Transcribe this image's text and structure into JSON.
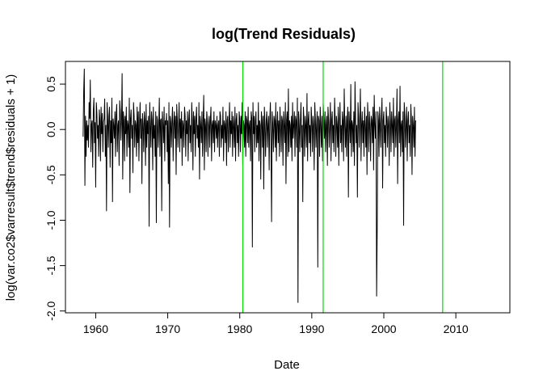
{
  "chart_data": {
    "type": "line",
    "title": "log(Trend Residuals)",
    "xlabel": "Date",
    "ylabel": "log(var.co2$varresult$trend$residuals + 1)",
    "xlim": [
      1955.8,
      2017.5
    ],
    "ylim": [
      -2.02,
      0.75
    ],
    "x_ticks": [
      1960,
      1970,
      1980,
      1990,
      2000,
      2010
    ],
    "x_tick_labels": [
      "1960",
      "1970",
      "1980",
      "1990",
      "2000",
      "2010"
    ],
    "y_ticks": [
      0.5,
      0.0,
      -0.5,
      -1.0,
      -1.5,
      -2.0
    ],
    "y_tick_labels": [
      "0.5",
      "0.0",
      "-0.5",
      "-1.0",
      "-1.5",
      "-2.0"
    ],
    "grid": false,
    "legend": "none",
    "series": [
      {
        "color": "#000000",
        "x_start": 1958.25,
        "x_step": 0.0833333,
        "values": [
          -0.08,
          0.42,
          0.67,
          -0.62,
          0.15,
          -0.3,
          0.1,
          -0.12,
          0.05,
          -0.2,
          0.3,
          0.12,
          0.55,
          -0.25,
          0.05,
          0.1,
          -0.42,
          0.2,
          0.35,
          -0.15,
          0.08,
          -0.64,
          0.3,
          0.18,
          -0.1,
          0.05,
          -0.3,
          0.22,
          0.1,
          -0.35,
          0.25,
          -0.05,
          0.18,
          -0.25,
          0.08,
          0.12,
          0.34,
          -0.3,
          0.05,
          -0.9,
          0.3,
          0.1,
          -0.2,
          0.15,
          0.25,
          -0.42,
          0.1,
          -0.15,
          0.35,
          -0.8,
          0.12,
          0.05,
          -0.1,
          0.2,
          -0.3,
          0.15,
          0.28,
          -0.25,
          0.05,
          0.1,
          -0.4,
          0.32,
          0.2,
          -0.12,
          0.1,
          0.62,
          -0.55,
          0.2,
          0.1,
          -0.35,
          0.15,
          -0.05,
          0.25,
          -0.3,
          0.1,
          0.05,
          -0.2,
          0.35,
          -0.7,
          0.12,
          0.22,
          -0.1,
          0.05,
          -0.48,
          0.3,
          0.15,
          -0.2,
          0.1,
          0.05,
          -0.3,
          0.25,
          -0.15,
          0.2,
          -0.35,
          0.08,
          0.3,
          -0.1,
          0.12,
          -0.6,
          0.18,
          0.05,
          -0.25,
          0.2,
          0.1,
          -0.4,
          0.28,
          -0.2,
          0.1,
          -0.05,
          0.15,
          -1.07,
          0.3,
          0.05,
          -0.2,
          0.2,
          0.1,
          -0.45,
          0.25,
          -0.1,
          0.05,
          -0.3,
          0.2,
          -1.03,
          0.15,
          0.1,
          -0.2,
          0.05,
          0.35,
          -0.3,
          0.1,
          0.12,
          -0.9,
          0.2,
          0.05,
          -0.15,
          0.25,
          -0.35,
          0.1,
          0.05,
          0.18,
          -0.25,
          0.1,
          -0.6,
          0.3,
          -1.08,
          0.15,
          0.08,
          -0.2,
          0.1,
          0.25,
          -0.35,
          0.05,
          0.2,
          -0.1,
          0.15,
          -0.5,
          0.28,
          0.1,
          -0.2,
          0.05,
          0.3,
          -0.25,
          0.12,
          -0.1,
          0.2,
          -0.4,
          0.1,
          0.05,
          -0.2,
          0.25,
          0.15,
          -0.3,
          0.1,
          -0.05,
          0.2,
          -0.35,
          0.1,
          0.22,
          -0.15,
          0.05,
          -0.25,
          0.3,
          0.1,
          -0.45,
          0.2,
          -0.05,
          0.15,
          -0.3,
          0.1,
          0.25,
          -0.1,
          0.05,
          -0.2,
          0.3,
          -0.55,
          0.15,
          0.05,
          -0.15,
          0.2,
          -0.3,
          0.1,
          0.38,
          -0.45,
          0.12,
          0.05,
          -0.25,
          0.2,
          0.1,
          -0.3,
          0.05,
          0.15,
          -0.2,
          0.1,
          0.25,
          -0.35,
          0.05,
          0.1,
          -0.15,
          0.2,
          -0.25,
          0.1,
          0.05,
          -0.1,
          0.15,
          -0.2,
          0.05,
          0.1,
          -0.3,
          0.2,
          0.15,
          -0.2,
          0.05,
          -0.1,
          0.25,
          -0.35,
          0.1,
          0.05,
          -0.15,
          0.2,
          -0.4,
          0.1,
          0.15,
          -0.25,
          0.05,
          0.3,
          -0.2,
          0.1,
          -0.05,
          0.2,
          -0.3,
          0.15,
          0.05,
          -0.2,
          0.25,
          -0.35,
          0.1,
          0.18,
          -0.15,
          0.05,
          -0.3,
          0.2,
          0.1,
          -0.25,
          0.15,
          -0.05,
          0.3,
          -0.4,
          0.1,
          0.05,
          -0.2,
          0.2,
          -0.3,
          0.15,
          0.1,
          -0.15,
          0.25,
          -0.2,
          0.05,
          0.1,
          -0.35,
          0.2,
          0.12,
          -1.3,
          0.3,
          -0.05,
          0.15,
          -0.25,
          0.1,
          0.2,
          -0.2,
          0.05,
          -0.15,
          0.3,
          -0.35,
          0.1,
          0.05,
          -0.55,
          0.2,
          0.1,
          -0.2,
          0.15,
          -0.66,
          0.25,
          0.05,
          -0.3,
          0.1,
          0.2,
          -0.2,
          0.05,
          0.15,
          -0.45,
          0.1,
          0.3,
          -0.1,
          -1.02,
          0.2,
          0.05,
          -0.25,
          0.15,
          0.1,
          -0.2,
          0.3,
          -0.35,
          0.05,
          0.2,
          -0.15,
          0.1,
          -0.3,
          0.25,
          0.05,
          -0.25,
          0.15,
          0.1,
          -0.4,
          0.2,
          0.05,
          -0.15,
          0.3,
          -0.6,
          0.1,
          0.2,
          -0.3,
          0.45,
          -0.25,
          0.1,
          0.05,
          -0.2,
          0.15,
          -0.35,
          0.3,
          -0.1,
          0.05,
          0.2,
          -0.3,
          0.15,
          0.1,
          -0.2,
          0.35,
          -1.91,
          0.2,
          0.05,
          -0.25,
          0.1,
          0.3,
          -0.2,
          0.05,
          -0.8,
          0.25,
          0.1,
          -0.3,
          0.15,
          0.05,
          -0.2,
          0.4,
          -0.35,
          0.1,
          0.2,
          -0.15,
          0.05,
          -0.3,
          0.25,
          0.1,
          -0.25,
          0.15,
          0.05,
          -0.45,
          0.3,
          0.1,
          -0.2,
          0.05,
          0.2,
          -1.52,
          0.15,
          0.1,
          -0.3,
          0.25,
          0.05,
          -0.2,
          0.15,
          -0.35,
          0.3,
          0.1,
          -0.1,
          0.2,
          -0.25,
          0.05,
          0.15,
          -0.4,
          0.25,
          0.1,
          -0.2,
          0.05,
          0.3,
          -0.35,
          0.1,
          0.2,
          -0.15,
          0.05,
          -0.25,
          0.35,
          0.1,
          -0.3,
          0.15,
          0.05,
          -0.2,
          0.25,
          -0.4,
          0.1,
          0.3,
          -0.15,
          0.05,
          -0.25,
          0.2,
          0.1,
          -0.35,
          0.45,
          0.05,
          -0.2,
          0.15,
          -0.3,
          0.1,
          0.25,
          -0.75,
          0.2,
          0.05,
          -0.15,
          0.5,
          -0.3,
          0.1,
          0.05,
          -0.25,
          0.2,
          -0.4,
          0.53,
          0.1,
          -0.15,
          0.05,
          -0.75,
          0.3,
          0.15,
          -0.2,
          0.1,
          0.45,
          -0.35,
          0.05,
          0.2,
          -0.15,
          0.1,
          -0.3,
          0.25,
          0.05,
          -0.2,
          0.15,
          -0.5,
          0.3,
          0.1,
          -0.25,
          0.2,
          0.05,
          -0.35,
          0.15,
          0.1,
          -0.15,
          0.25,
          -0.45,
          0.38,
          0.05,
          -0.1,
          0.2,
          -1.84,
          -1.1,
          0.2,
          0.1,
          -0.3,
          0.25,
          0.05,
          -0.2,
          0.15,
          0.35,
          -0.65,
          0.1,
          0.2,
          -0.15,
          0.05,
          -0.3,
          0.25,
          0.1,
          -0.2,
          0.15,
          0.05,
          -0.4,
          0.3,
          0.1,
          -0.25,
          0.2,
          0.05,
          -0.15,
          0.35,
          -0.3,
          0.1,
          0.15,
          -0.2,
          0.05,
          0.45,
          -0.6,
          0.1,
          0.2,
          -0.15,
          0.48,
          -0.3,
          0.05,
          0.1,
          -0.25,
          0.2,
          -1.06,
          0.3,
          0.15,
          -0.2,
          0.05,
          0.25,
          -0.35,
          0.1,
          0.2,
          -0.15,
          0.05,
          -0.3,
          0.28,
          0.1,
          -0.5,
          0.15,
          0.05,
          -0.2,
          0.25,
          -0.3,
          0.1
        ]
      }
    ],
    "vertical_lines": [
      {
        "x": 1980.42,
        "color": "#00dd00"
      },
      {
        "x": 1991.58,
        "color": "#00dd00"
      },
      {
        "x": 2008.17,
        "color": "#00dd00"
      }
    ]
  }
}
